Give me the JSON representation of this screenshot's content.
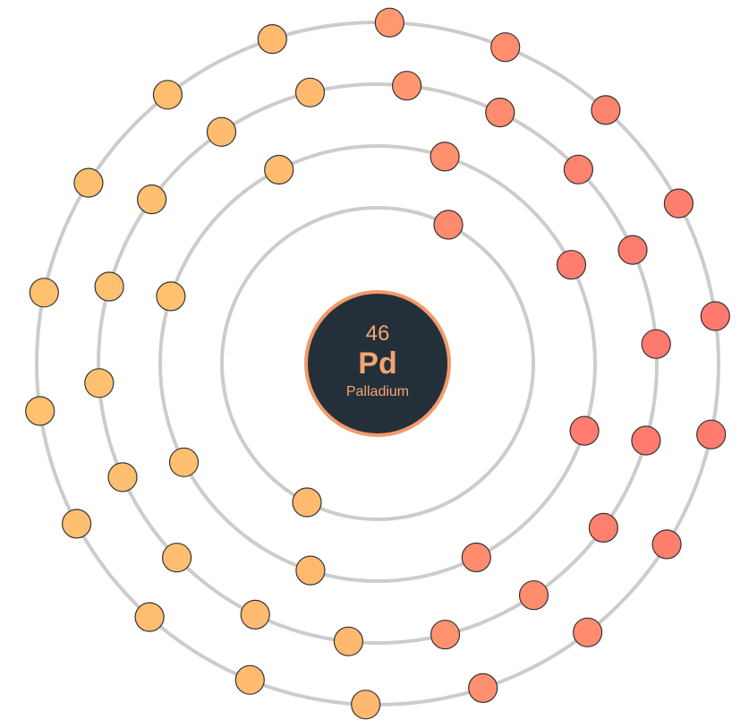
{
  "element": {
    "atomic_number": "46",
    "symbol": "Pd",
    "name": "Palladium"
  },
  "shells": [
    {
      "electrons": 2,
      "start_deg": -63
    },
    {
      "electrons": 8,
      "start_deg": -72
    },
    {
      "electrons": 18,
      "start_deg": -84
    },
    {
      "electrons": 18,
      "start_deg": -88
    }
  ],
  "colors": {
    "orbit": "#cccccc",
    "electron_warm_start": "#ffc070",
    "electron_warm_end": "#ff7a6e",
    "electron_stroke": "#333333",
    "nucleus_fill": "#23303a",
    "nucleus_border": "#f29a6b",
    "nucleus_text": "#f5a46f"
  }
}
